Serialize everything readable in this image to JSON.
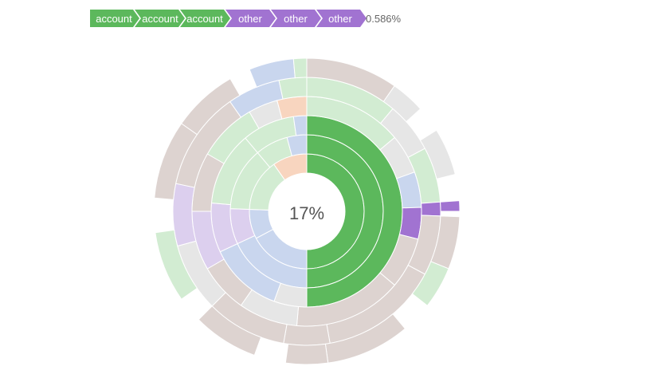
{
  "breadcrumb": {
    "steps": [
      {
        "label": "account",
        "color": "#5cb85c"
      },
      {
        "label": "account",
        "color": "#5cb85c"
      },
      {
        "label": "account",
        "color": "#5cb85c"
      },
      {
        "label": "other",
        "color": "#a173d1"
      },
      {
        "label": "other",
        "color": "#a173d1"
      },
      {
        "label": "other",
        "color": "#a173d1"
      }
    ],
    "percentage": "0.586%"
  },
  "center_label": "17%",
  "colors": {
    "account": "#5cb85c",
    "other": "#a173d1",
    "light_green": "#d2ecd2",
    "light_blue": "#c9d6ee",
    "light_peach": "#f8d5bf",
    "light_taupe": "#ddd3d0",
    "light_grey": "#e6e6e6",
    "light_purple": "#dccfee"
  },
  "chart_data": {
    "type": "sunburst",
    "highlighted_path": [
      "account",
      "account",
      "account",
      "other",
      "other",
      "other"
    ],
    "highlighted_share": 0.17,
    "highlighted_path_share": 0.00586
  }
}
